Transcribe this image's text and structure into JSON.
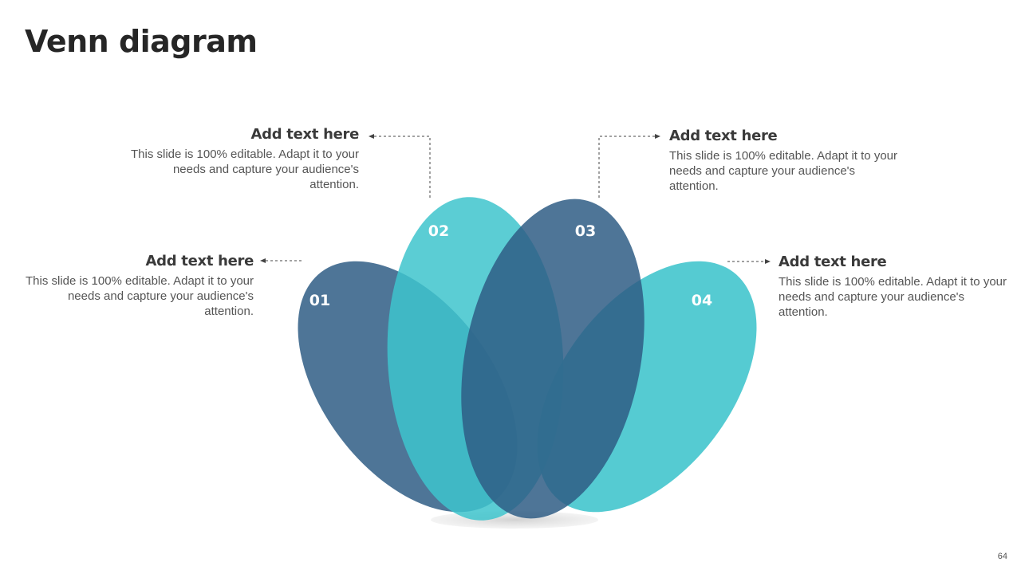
{
  "slide": {
    "title": "Venn diagram",
    "page_number": "64"
  },
  "colors": {
    "teal": "#3EC4CC",
    "slate_blue": "#2F5D85"
  },
  "petals": [
    {
      "id": "01",
      "label": "01",
      "color": "slate_blue"
    },
    {
      "id": "02",
      "label": "02",
      "color": "teal"
    },
    {
      "id": "03",
      "label": "03",
      "color": "slate_blue"
    },
    {
      "id": "04",
      "label": "04",
      "color": "teal"
    }
  ],
  "callouts": [
    {
      "id": "01",
      "heading": "Add text here",
      "text": "This slide is 100% editable. Adapt it to your needs and capture your audience's attention."
    },
    {
      "id": "02",
      "heading": "Add text here",
      "text": "This slide is 100% editable. Adapt it to your needs and capture your audience's attention."
    },
    {
      "id": "03",
      "heading": "Add text here",
      "text": "This slide is 100% editable. Adapt it to your needs and capture your audience's attention."
    },
    {
      "id": "04",
      "heading": "Add text here",
      "text": "This slide is 100% editable. Adapt it to your needs and capture your audience's attention."
    }
  ]
}
